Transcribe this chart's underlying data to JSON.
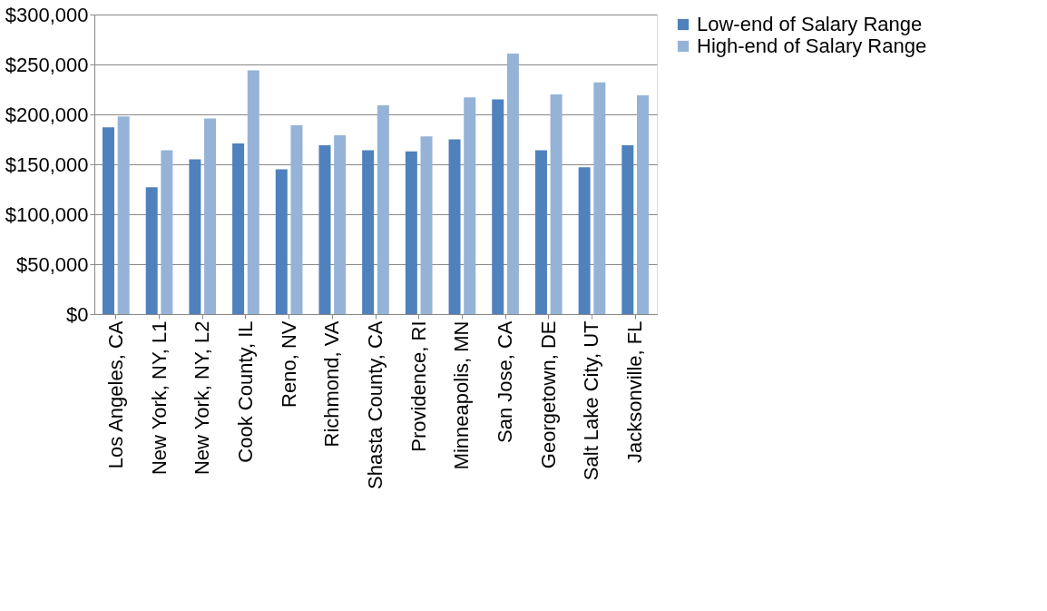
{
  "chart_data": {
    "type": "bar",
    "categories": [
      "Los Angeles, CA",
      "New York, NY, L1",
      "New York, NY, L2",
      "Cook County, IL",
      "Reno, NV",
      "Richmond, VA",
      "Shasta County, CA",
      "Providence, RI",
      "Minneapolis, MN",
      "San Jose, CA",
      "Georgetown, DE",
      "Salt Lake City, UT",
      "Jacksonville, FL"
    ],
    "series": [
      {
        "name": "Low-end of Salary Range",
        "color": "#4f81bd",
        "values": [
          187000,
          127000,
          155000,
          171000,
          145000,
          169000,
          164000,
          163000,
          175000,
          215000,
          164000,
          147000,
          169000
        ]
      },
      {
        "name": "High-end of Salary Range",
        "color": "#95b3d7",
        "values": [
          198000,
          164000,
          196000,
          244000,
          189000,
          179000,
          209000,
          178000,
          217000,
          261000,
          220000,
          232000,
          219000
        ]
      }
    ],
    "ylim": [
      0,
      300000
    ],
    "yticks": [
      {
        "value": 0,
        "label": "$0"
      },
      {
        "value": 50000,
        "label": "$50,000"
      },
      {
        "value": 100000,
        "label": "$100,000"
      },
      {
        "value": 150000,
        "label": "$150,000"
      },
      {
        "value": 200000,
        "label": "$200,000"
      },
      {
        "value": 250000,
        "label": "$250,000"
      },
      {
        "value": 300000,
        "label": "$300,000"
      }
    ],
    "grid": "y",
    "legend": "right"
  }
}
